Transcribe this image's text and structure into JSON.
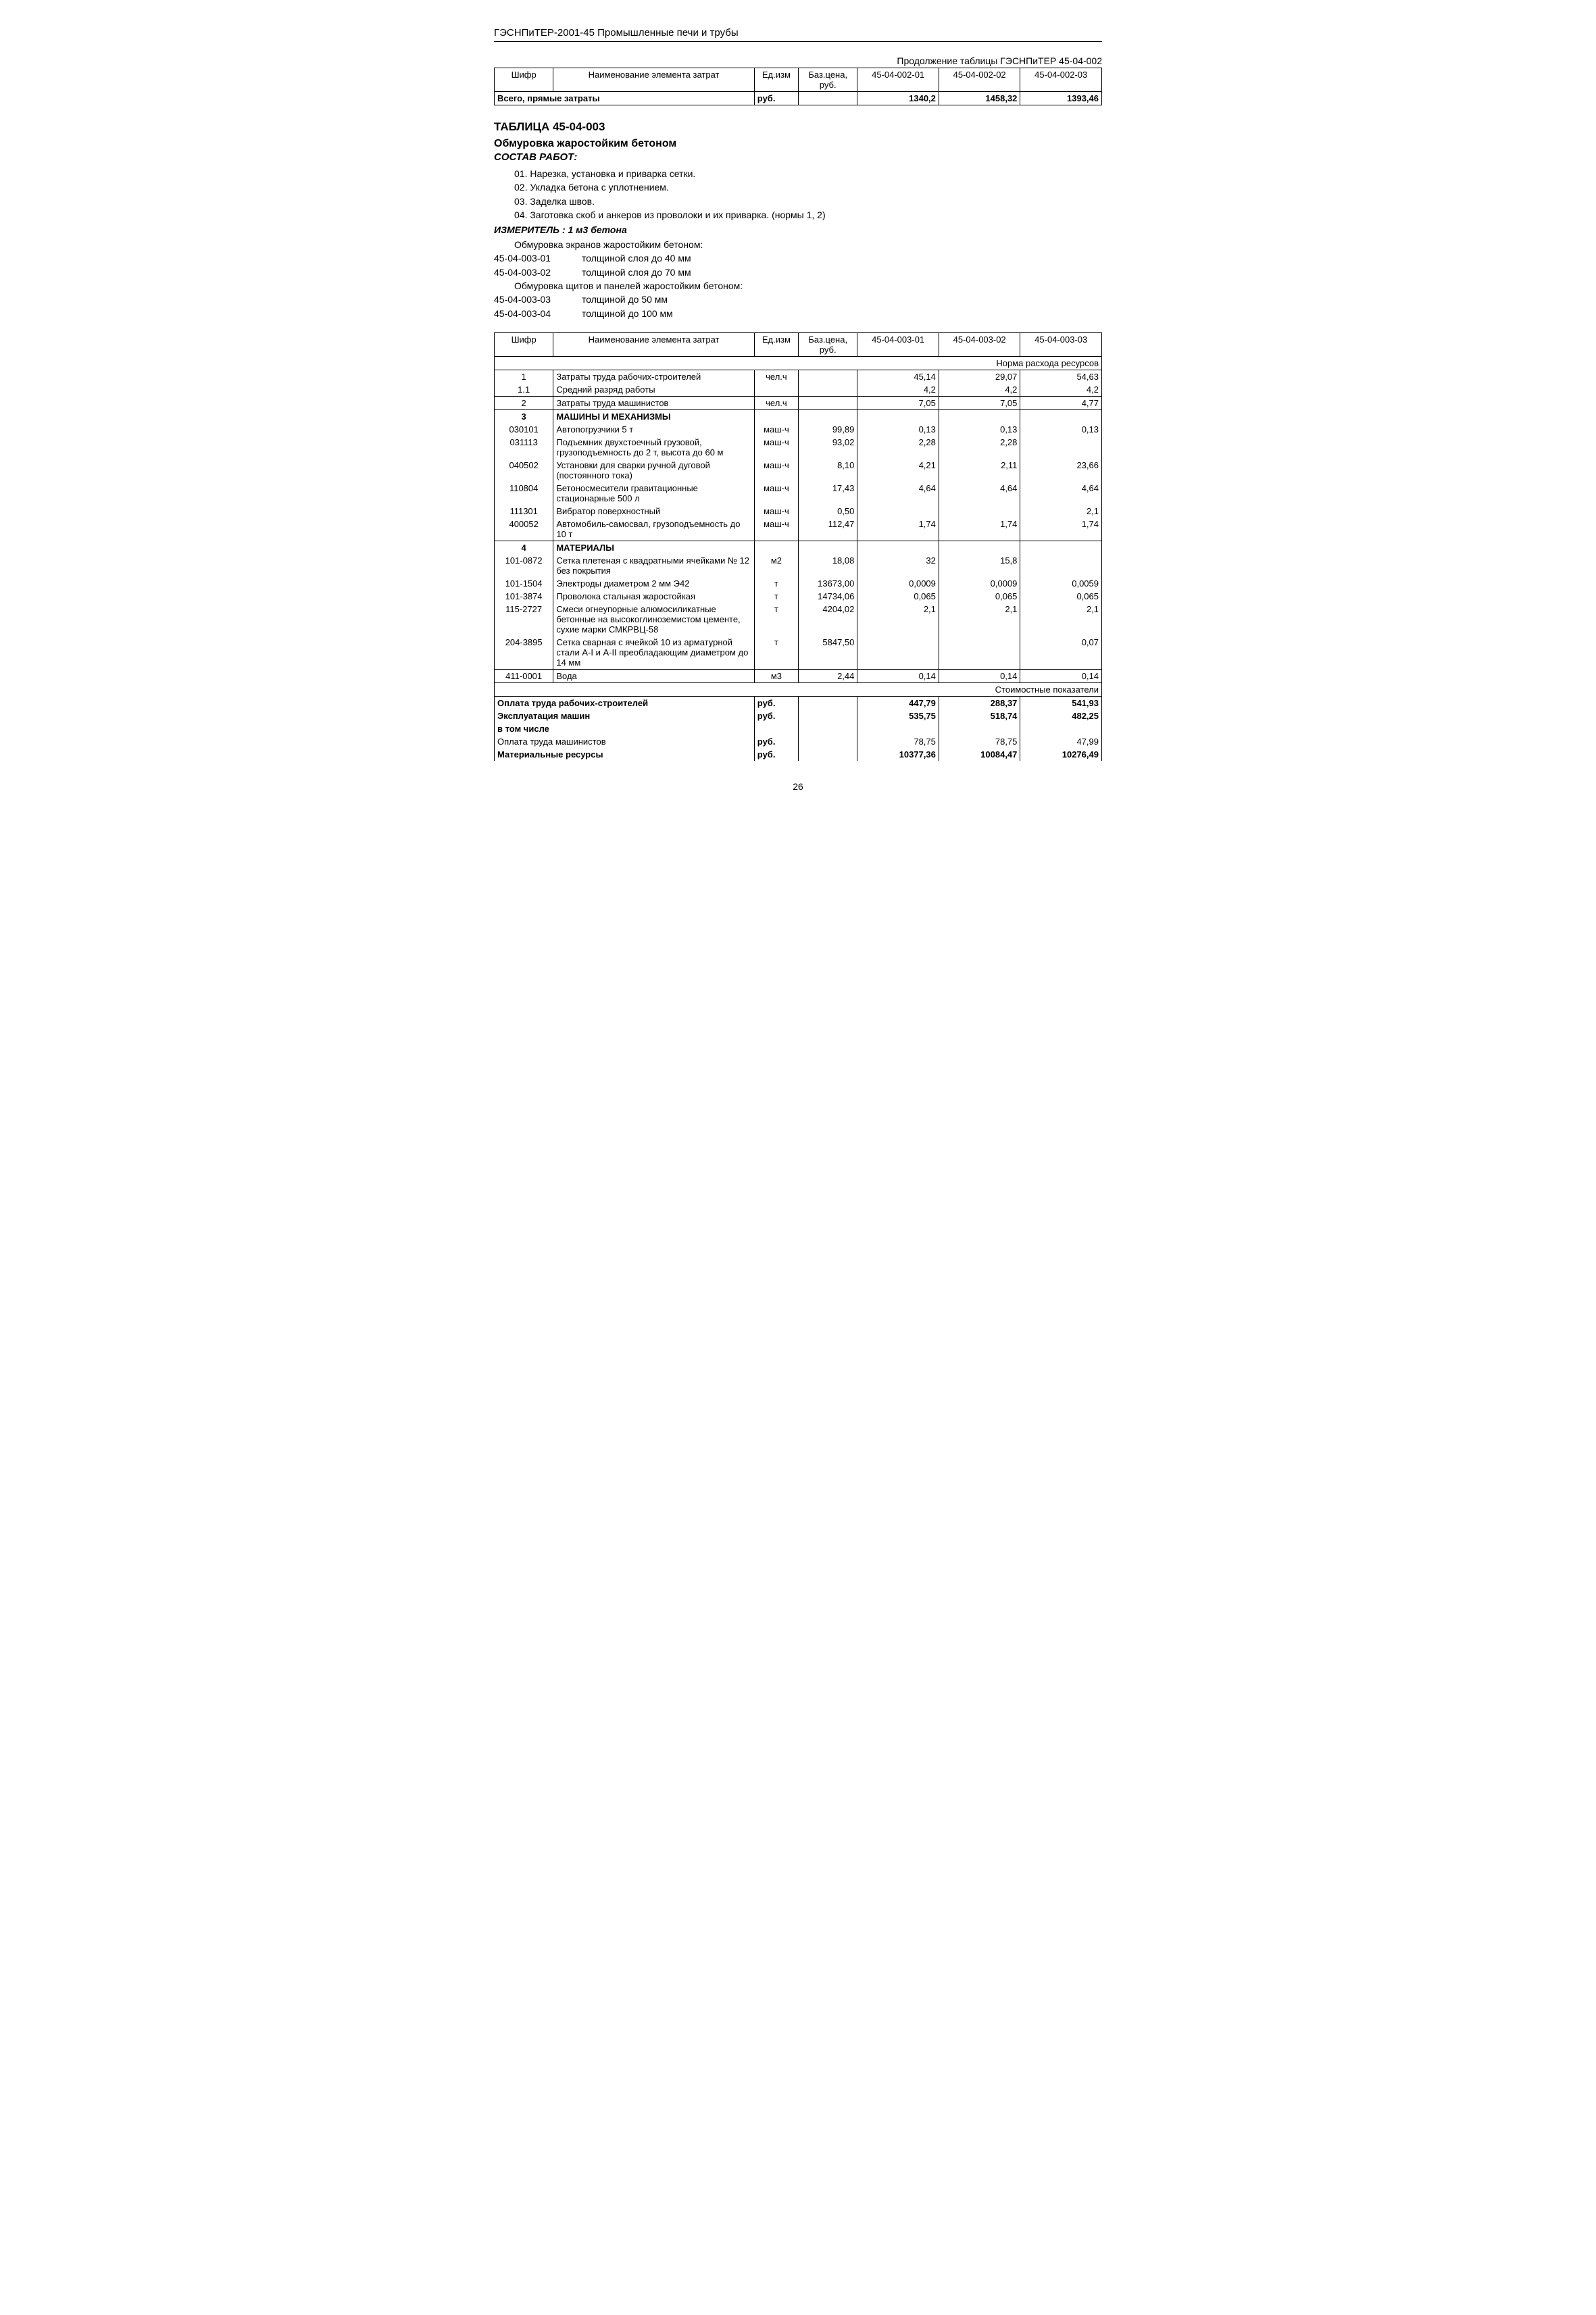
{
  "header": "ГЭСНПиТЕР-2001-45 Промышленные печи и трубы",
  "contLabel": "Продолжение таблицы ГЭСНПиТЕР 45-04-002",
  "topTable": {
    "headers": [
      "Шифр",
      "Наименование элемента затрат",
      "Ед.изм",
      "Баз.цена, руб.",
      "45-04-002-01",
      "45-04-002-02",
      "45-04-002-03"
    ],
    "totalLabel": "Всего, прямые затраты",
    "totalUnit": "руб.",
    "totals": [
      "1340,2",
      "1458,32",
      "1393,46"
    ]
  },
  "tableTitle": "ТАБЛИЦА 45-04-003",
  "subtitle": "Обмуровка жаростойким бетоном",
  "sostavLabel": "СОСТАВ РАБОТ:",
  "works": [
    "01. Нарезка, установка и приварка сетки.",
    "02. Укладка бетона с уплотнением.",
    "03. Заделка швов.",
    "04. Заготовка скоб и анкеров из проволоки и их приварка. (нормы 1, 2)"
  ],
  "izmer": "ИЗМЕРИТЕЛЬ : 1 м3 бетона",
  "descIntro1": "Обмуровка экранов жаростойким бетоном:",
  "descLines1": [
    {
      "code": "45-04-003-01",
      "text": "толщиной слоя до 40 мм"
    },
    {
      "code": "45-04-003-02",
      "text": "толщиной слоя до 70 мм"
    }
  ],
  "descIntro2": "Обмуровка щитов и панелей жаростойким бетоном:",
  "descLines2": [
    {
      "code": "45-04-003-03",
      "text": "толщиной до 50 мм"
    },
    {
      "code": "45-04-003-04",
      "text": "толщиной до 100 мм"
    }
  ],
  "mainTable": {
    "headers": [
      "Шифр",
      "Наименование элемента затрат",
      "Ед.изм",
      "Баз.цена, руб.",
      "45-04-003-01",
      "45-04-003-02",
      "45-04-003-03"
    ],
    "normLabel": "Норма расхода ресурсов",
    "rows": [
      {
        "c": "1",
        "n": "Затраты труда рабочих-строителей",
        "u": "чел.ч",
        "b": "",
        "v": [
          "45,14",
          "29,07",
          "54,63"
        ],
        "top": true
      },
      {
        "c": "1.1",
        "n": "Средний разряд работы",
        "u": "",
        "b": "",
        "v": [
          "4,2",
          "4,2",
          "4,2"
        ]
      },
      {
        "c": "2",
        "n": "Затраты труда машинистов",
        "u": "чел.ч",
        "b": "",
        "v": [
          "7,05",
          "7,05",
          "4,77"
        ],
        "top": true
      },
      {
        "c": "3",
        "n": "МАШИНЫ И МЕХАНИЗМЫ",
        "u": "",
        "b": "",
        "v": [
          "",
          "",
          ""
        ],
        "bold": true,
        "top": true
      },
      {
        "c": "030101",
        "n": "Автопогрузчики 5 т",
        "u": "маш-ч",
        "b": "99,89",
        "v": [
          "0,13",
          "0,13",
          "0,13"
        ]
      },
      {
        "c": "031113",
        "n": "Подъемник двухстоечный грузовой, грузоподъемность до 2 т, высота до 60 м",
        "u": "маш-ч",
        "b": "93,02",
        "v": [
          "2,28",
          "2,28",
          ""
        ]
      },
      {
        "c": "040502",
        "n": "Установки для сварки ручной дуговой (постоянного тока)",
        "u": "маш-ч",
        "b": "8,10",
        "v": [
          "4,21",
          "2,11",
          "23,66"
        ]
      },
      {
        "c": "110804",
        "n": "Бетоносмесители гравитационные стационарные 500 л",
        "u": "маш-ч",
        "b": "17,43",
        "v": [
          "4,64",
          "4,64",
          "4,64"
        ]
      },
      {
        "c": "111301",
        "n": "Вибратор поверхностный",
        "u": "маш-ч",
        "b": "0,50",
        "v": [
          "",
          "",
          "2,1"
        ]
      },
      {
        "c": "400052",
        "n": "Автомобиль-самосвал, грузоподъемность до 10 т",
        "u": "маш-ч",
        "b": "112,47",
        "v": [
          "1,74",
          "1,74",
          "1,74"
        ]
      },
      {
        "c": "4",
        "n": "МАТЕРИАЛЫ",
        "u": "",
        "b": "",
        "v": [
          "",
          "",
          ""
        ],
        "bold": true,
        "top": true
      },
      {
        "c": "101-0872",
        "n": "Сетка плетеная с квадратными ячейками № 12 без покрытия",
        "u": "м2",
        "b": "18,08",
        "v": [
          "32",
          "15,8",
          ""
        ]
      },
      {
        "c": "101-1504",
        "n": "Электроды диаметром 2 мм Э42",
        "u": "т",
        "b": "13673,00",
        "v": [
          "0,0009",
          "0,0009",
          "0,0059"
        ]
      },
      {
        "c": "101-3874",
        "n": "Проволока стальная жаростойкая",
        "u": "т",
        "b": "14734,06",
        "v": [
          "0,065",
          "0,065",
          "0,065"
        ]
      },
      {
        "c": "115-2727",
        "n": "Смеси огнеупорные алюмосиликатные бетонные на высокоглиноземистом цементе, сухие марки СМКРВЦ-58",
        "u": "т",
        "b": "4204,02",
        "v": [
          "2,1",
          "2,1",
          "2,1"
        ]
      },
      {
        "c": "204-3895",
        "n": "Сетка сварная с ячейкой 10 из арматурной стали А-I и А-II преобладающим диаметром до 14 мм",
        "u": "т",
        "b": "5847,50",
        "v": [
          "",
          "",
          "0,07"
        ]
      },
      {
        "c": "411-0001",
        "n": "Вода",
        "u": "м3",
        "b": "2,44",
        "v": [
          "0,14",
          "0,14",
          "0,14"
        ],
        "top": true,
        "bot": true
      }
    ],
    "stoimLabel": "Стоимостные показатели",
    "footer": [
      {
        "n": "Оплата труда рабочих-строителей",
        "u": "руб.",
        "v": [
          "447,79",
          "288,37",
          "541,93"
        ],
        "bold": true
      },
      {
        "n": "Эксплуатация машин",
        "u": "руб.",
        "v": [
          "535,75",
          "518,74",
          "482,25"
        ],
        "bold": true
      },
      {
        "n": "в том числе",
        "u": "",
        "v": [
          "",
          "",
          ""
        ],
        "bold": true
      },
      {
        "n": "Оплата труда машинистов",
        "u": "руб.",
        "v": [
          "78,75",
          "78,75",
          "47,99"
        ]
      },
      {
        "n": "Материальные ресурсы",
        "u": "руб.",
        "v": [
          "10377,36",
          "10084,47",
          "10276,49"
        ],
        "bold": true
      }
    ]
  },
  "pageNum": "26"
}
